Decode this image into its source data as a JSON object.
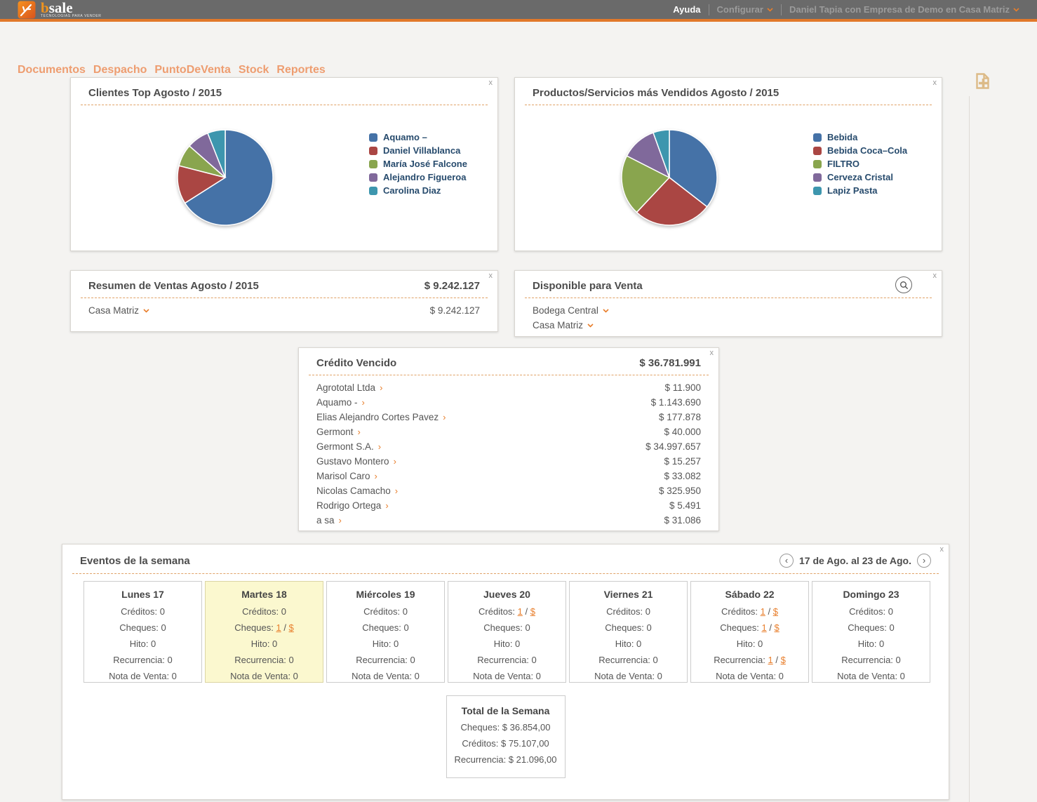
{
  "ui": {
    "accent": "#e87e2b",
    "close_label": "x"
  },
  "topbar": {
    "logo_b": "b",
    "logo_rest": "sale",
    "tagline": "tecnologias para vender",
    "help": "Ayuda",
    "configure": "Configurar",
    "user_menu": "Daniel Tapia con Empresa de Demo en Casa Matriz"
  },
  "nav": {
    "items": [
      {
        "id": "documentos",
        "label": "Documentos"
      },
      {
        "id": "despacho",
        "label": "Despacho"
      },
      {
        "id": "puntodeventa",
        "label": "PuntoDeVenta"
      },
      {
        "id": "stock",
        "label": "Stock"
      },
      {
        "id": "reportes",
        "label": "Reportes"
      }
    ]
  },
  "chart_data": [
    {
      "type": "pie",
      "title": "Clientes Top Agosto / 2015",
      "labels": [
        "Aquamo –",
        "Daniel Villablanca",
        "María José Falcone",
        "Alejandro Figueroa",
        "Carolina Diaz"
      ],
      "values_percent": [
        66,
        13,
        7.5,
        7.5,
        6
      ],
      "colors": [
        "#4572A7",
        "#AA4643",
        "#89A54E",
        "#80699B",
        "#3D96AE"
      ],
      "legend_position": "right"
    },
    {
      "type": "pie",
      "title": "Productos/Servicios más Vendidos Agosto / 2015",
      "labels": [
        "Bebida",
        "Bebida Coca–Cola",
        "FILTRO",
        "Cerveza Cristal",
        "Lapiz Pasta"
      ],
      "values_percent": [
        35.5,
        26.5,
        20.5,
        12,
        5.5
      ],
      "colors": [
        "#4572A7",
        "#AA4643",
        "#89A54E",
        "#80699B",
        "#3D96AE"
      ],
      "legend_position": "right"
    }
  ],
  "widgets": {
    "resumen": {
      "title": "Resumen de Ventas Agosto / 2015",
      "total": "$ 9.242.127",
      "rows": [
        {
          "name": "Casa Matriz",
          "amount": "$ 9.242.127"
        }
      ]
    },
    "disponible": {
      "title": "Disponible para Venta",
      "rows": [
        {
          "name": "Bodega Central"
        },
        {
          "name": "Casa Matriz"
        }
      ]
    },
    "credito": {
      "title": "Crédito Vencido",
      "total": "$ 36.781.991",
      "rows": [
        {
          "name": "Agrototal Ltda",
          "amount": "$ 11.900"
        },
        {
          "name": "Aquamo -",
          "amount": "$ 1.143.690"
        },
        {
          "name": "Elias Alejandro Cortes Pavez",
          "amount": "$ 177.878"
        },
        {
          "name": "Germont",
          "amount": "$ 40.000"
        },
        {
          "name": "Germont S.A.",
          "amount": "$ 34.997.657"
        },
        {
          "name": "Gustavo Montero",
          "amount": "$ 15.257"
        },
        {
          "name": "Marisol Caro",
          "amount": "$ 33.082"
        },
        {
          "name": "Nicolas Camacho",
          "amount": "$ 325.950"
        },
        {
          "name": "Rodrigo Ortega",
          "amount": "$ 5.491"
        },
        {
          "name": "a sa",
          "amount": "$ 31.086"
        }
      ]
    },
    "eventos": {
      "title": "Eventos de la semana",
      "range": "17 de Ago. al 23 de Ago.",
      "days": [
        {
          "title": "Lunes 17",
          "highlight": false,
          "stats": [
            {
              "label": "Créditos",
              "value": "0"
            },
            {
              "label": "Cheques",
              "value": "0"
            },
            {
              "label": "Hito",
              "value": "0"
            },
            {
              "label": "Recurrencia",
              "value": "0"
            },
            {
              "label": "Nota de Venta",
              "value": "0"
            }
          ]
        },
        {
          "title": "Martes 18",
          "highlight": true,
          "stats": [
            {
              "label": "Créditos",
              "value": "0"
            },
            {
              "label": "Cheques",
              "count": "1",
              "money": "$"
            },
            {
              "label": "Hito",
              "value": "0"
            },
            {
              "label": "Recurrencia",
              "value": "0"
            },
            {
              "label": "Nota de Venta",
              "value": "0"
            }
          ]
        },
        {
          "title": "Miércoles 19",
          "highlight": false,
          "stats": [
            {
              "label": "Créditos",
              "value": "0"
            },
            {
              "label": "Cheques",
              "value": "0"
            },
            {
              "label": "Hito",
              "value": "0"
            },
            {
              "label": "Recurrencia",
              "value": "0"
            },
            {
              "label": "Nota de Venta",
              "value": "0"
            }
          ]
        },
        {
          "title": "Jueves 20",
          "highlight": false,
          "stats": [
            {
              "label": "Créditos",
              "count": "1",
              "money": "$"
            },
            {
              "label": "Cheques",
              "value": "0"
            },
            {
              "label": "Hito",
              "value": "0"
            },
            {
              "label": "Recurrencia",
              "value": "0"
            },
            {
              "label": "Nota de Venta",
              "value": "0"
            }
          ]
        },
        {
          "title": "Viernes 21",
          "highlight": false,
          "stats": [
            {
              "label": "Créditos",
              "value": "0"
            },
            {
              "label": "Cheques",
              "value": "0"
            },
            {
              "label": "Hito",
              "value": "0"
            },
            {
              "label": "Recurrencia",
              "value": "0"
            },
            {
              "label": "Nota de Venta",
              "value": "0"
            }
          ]
        },
        {
          "title": "Sábado 22",
          "highlight": false,
          "stats": [
            {
              "label": "Créditos",
              "count": "1",
              "money": "$"
            },
            {
              "label": "Cheques",
              "count": "1",
              "money": "$"
            },
            {
              "label": "Hito",
              "value": "0"
            },
            {
              "label": "Recurrencia",
              "count": "1",
              "money": "$"
            },
            {
              "label": "Nota de Venta",
              "value": "0"
            }
          ]
        },
        {
          "title": "Domingo 23",
          "highlight": false,
          "stats": [
            {
              "label": "Créditos",
              "value": "0"
            },
            {
              "label": "Cheques",
              "value": "0"
            },
            {
              "label": "Hito",
              "value": "0"
            },
            {
              "label": "Recurrencia",
              "value": "0"
            },
            {
              "label": "Nota de Venta",
              "value": "0"
            }
          ]
        }
      ],
      "total_box": {
        "title": "Total de la Semana",
        "lines": [
          {
            "label": "Cheques",
            "value": "$ 36.854,00"
          },
          {
            "label": "Créditos",
            "value": "$ 75.107,00"
          },
          {
            "label": "Recurrencia",
            "value": "$ 21.096,00"
          }
        ]
      }
    }
  }
}
